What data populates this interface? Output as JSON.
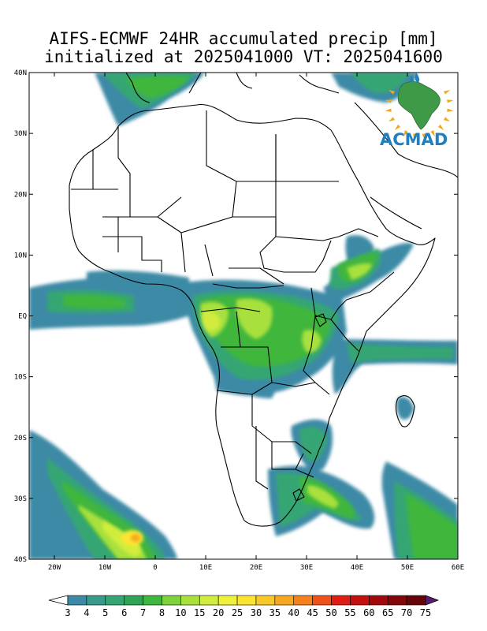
{
  "title": {
    "line1": "AIFS-ECMWF 24HR accumulated precip [mm]",
    "line2": "initialized at 2025041000 VT: 2025041600"
  },
  "axes": {
    "lat_labels": [
      "40N",
      "30N",
      "20N",
      "10N",
      "EQ",
      "10S",
      "20S",
      "30S",
      "40S"
    ],
    "lon_labels": [
      "20W",
      "10W",
      "0",
      "10E",
      "20E",
      "30E",
      "40E",
      "50E",
      "60E"
    ],
    "lat_range": [
      -40,
      40
    ],
    "lon_range": [
      -25,
      60
    ]
  },
  "logo": {
    "text": "ACMAD",
    "icon": "africa-sun-logo-icon",
    "text_color": "#1f7fbf",
    "shape_color": "#3f9a48",
    "ray_color": "#f2a81c",
    "drop_color": "#1f7fbf"
  },
  "colorbar": {
    "labels": [
      "3",
      "4",
      "5",
      "6",
      "7",
      "8",
      "10",
      "15",
      "20",
      "25",
      "30",
      "35",
      "40",
      "45",
      "50",
      "55",
      "60",
      "65",
      "70",
      "75"
    ],
    "colors": [
      "#ffffff",
      "#3c8aa6",
      "#3a9b8b",
      "#35a673",
      "#2fa457",
      "#3fb63e",
      "#7fd23a",
      "#a8e03c",
      "#d1ec3e",
      "#eef23c",
      "#fbe531",
      "#f9c92a",
      "#f7a822",
      "#f4811c",
      "#ef5118",
      "#e01d14",
      "#c4100f",
      "#a3090c",
      "#820709",
      "#650507",
      "#5a1a72"
    ]
  }
}
